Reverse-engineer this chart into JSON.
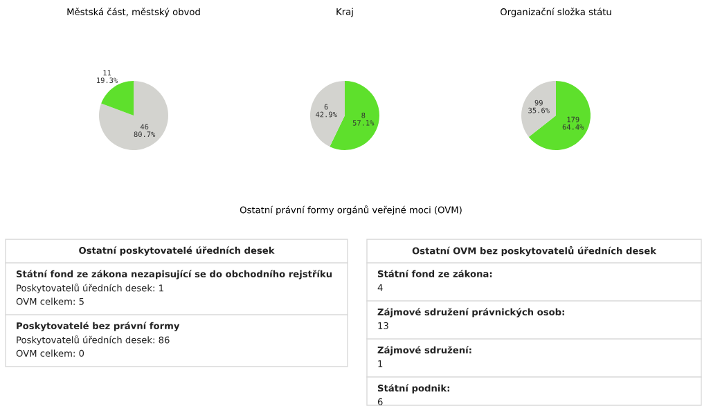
{
  "chart_data": [
    {
      "type": "pie",
      "title": "Městská část, městský obvod",
      "categories": [
        null,
        null
      ],
      "values": [
        46,
        11
      ],
      "colors": [
        "#d3d3cf",
        "#5ee02c"
      ],
      "value_labels": [
        "46\n80.7%",
        "11\n19.3%"
      ]
    },
    {
      "type": "pie",
      "title": "Kraj",
      "categories": [
        null,
        null
      ],
      "values": [
        8,
        6
      ],
      "colors": [
        "#5ee02c",
        "#d3d3cf"
      ],
      "value_labels": [
        "8\n57.1%",
        "6\n42.9%"
      ]
    },
    {
      "type": "pie",
      "title": "Organizační složka státu",
      "categories": [
        null,
        null
      ],
      "values": [
        179,
        99
      ],
      "colors": [
        "#5ee02c",
        "#d3d3cf"
      ],
      "value_labels": [
        "179\n64.4%",
        "99\n35.6%"
      ]
    },
    {
      "type": "other",
      "title": "Ostatní právní formy orgánů veřejné moci (OVM)"
    },
    {
      "type": "other",
      "title": "Ostatní poskytovatelé úředních desek",
      "annotations": [
        "Státní fond ze zákona nezapisující se do obchodního rejstříku\nPoskytovatelů úředních desek: 1\nOVM celkem: 5",
        "Poskytovatelé bez právní formy\nPoskytovatelů úředních desek: 86\nOVM celkem: 0"
      ]
    },
    {
      "type": "other",
      "title": "Ostatní OVM bez poskytovatelů úředních desek",
      "annotations": [
        "Státní fond ze zákona:\n4",
        "Zájmové sdružení právnických osob:\n13",
        "Zájmové sdružení:\n1",
        "Státní podnik:\n6"
      ]
    }
  ]
}
